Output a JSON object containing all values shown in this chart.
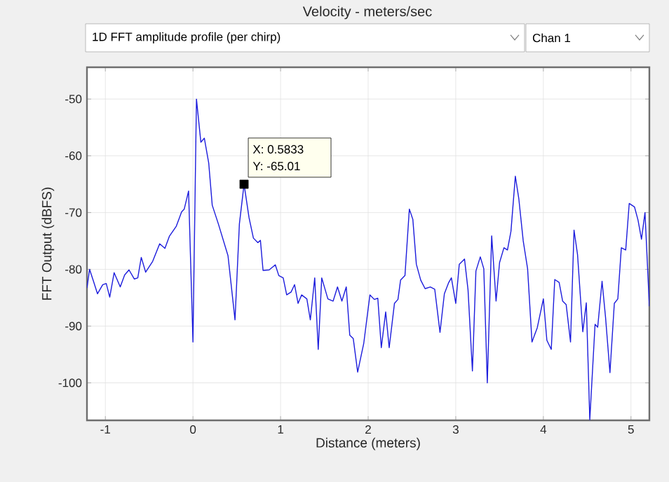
{
  "chart_data": {
    "type": "line",
    "title": "Velocity - meters/sec",
    "xlabel": "Distance (meters)",
    "ylabel": "FFT Output (dBFS)",
    "annotations": [
      "1D FFT amplitude profile (per chirp)",
      "Chan 1",
      {
        "text": "X: 0.5833",
        "x": 0.5833,
        "y": -65.01
      },
      {
        "text": "Y: -65.01",
        "x": 0.5833,
        "y": -65.01
      }
    ],
    "x": [
      -1.21,
      -1.18,
      -1.14,
      -1.09,
      -1.03,
      -0.99,
      -0.95,
      -0.9,
      -0.83,
      -0.78,
      -0.73,
      -0.67,
      -0.63,
      -0.59,
      -0.54,
      -0.46,
      -0.38,
      -0.32,
      -0.27,
      -0.19,
      -0.13,
      -0.1,
      -0.05,
      0.0,
      0.04,
      0.09,
      0.13,
      0.18,
      0.22,
      0.29,
      0.4,
      0.48,
      0.53,
      0.5833,
      0.64,
      0.69,
      0.74,
      0.77,
      0.8,
      0.87,
      0.94,
      0.98,
      1.03,
      1.07,
      1.12,
      1.16,
      1.2,
      1.24,
      1.3,
      1.34,
      1.39,
      1.43,
      1.47,
      1.54,
      1.6,
      1.65,
      1.7,
      1.75,
      1.79,
      1.83,
      1.88,
      1.95,
      2.02,
      2.07,
      2.11,
      2.15,
      2.2,
      2.24,
      2.3,
      2.34,
      2.37,
      2.42,
      2.47,
      2.51,
      2.55,
      2.6,
      2.65,
      2.71,
      2.76,
      2.82,
      2.87,
      2.92,
      2.95,
      3.0,
      3.04,
      3.1,
      3.14,
      3.19,
      3.23,
      3.28,
      3.32,
      3.36,
      3.41,
      3.46,
      3.5,
      3.55,
      3.59,
      3.63,
      3.68,
      3.72,
      3.77,
      3.82,
      3.87,
      3.93,
      4.0,
      4.04,
      4.09,
      4.13,
      4.18,
      4.22,
      4.26,
      4.31,
      4.35,
      4.39,
      4.45,
      4.49,
      4.53,
      4.59,
      4.62,
      4.67,
      4.71,
      4.76,
      4.81,
      4.85,
      4.89,
      4.94,
      4.98,
      5.04,
      5.08,
      5.12,
      5.16,
      5.21
    ],
    "series": [
      {
        "color": "#1c1cdc",
        "values": [
          -83.3,
          -80.0,
          -81.9,
          -84.3,
          -82.7,
          -82.5,
          -84.9,
          -80.6,
          -83.1,
          -81.0,
          -80.1,
          -81.7,
          -81.5,
          -77.9,
          -80.5,
          -78.6,
          -75.5,
          -76.3,
          -74.2,
          -72.4,
          -69.9,
          -69.4,
          -66.2,
          -92.8,
          -50.0,
          -57.6,
          -56.9,
          -61.3,
          -68.7,
          -72.0,
          -77.6,
          -88.9,
          -72.0,
          -65.0,
          -70.9,
          -74.5,
          -75.3,
          -74.9,
          -80.2,
          -80.1,
          -79.2,
          -81.1,
          -81.5,
          -84.5,
          -84.0,
          -82.7,
          -86.0,
          -84.5,
          -85.2,
          -88.9,
          -81.5,
          -94.1,
          -81.5,
          -85.2,
          -85.6,
          -83.1,
          -85.6,
          -83.1,
          -91.6,
          -92.2,
          -98.1,
          -93.0,
          -84.5,
          -85.3,
          -85.1,
          -93.8,
          -87.5,
          -93.8,
          -86.0,
          -85.3,
          -81.9,
          -81.1,
          -69.4,
          -71.2,
          -79.1,
          -81.9,
          -83.4,
          -83.1,
          -83.5,
          -91.1,
          -84.3,
          -82.3,
          -81.5,
          -86.0,
          -79.1,
          -78.2,
          -83.6,
          -97.9,
          -80.3,
          -77.8,
          -79.9,
          -100.0,
          -74.1,
          -85.6,
          -78.8,
          -76.2,
          -76.6,
          -73.3,
          -63.6,
          -67.6,
          -75.0,
          -79.9,
          -92.8,
          -90.3,
          -85.2,
          -92.5,
          -94.1,
          -81.8,
          -82.3,
          -85.6,
          -86.2,
          -92.8,
          -73.1,
          -77.4,
          -91.0,
          -85.9,
          -106.5,
          -89.7,
          -90.2,
          -82.1,
          -88.5,
          -98.2,
          -86.0,
          -85.2,
          -76.2,
          -76.6,
          -68.4,
          -69.0,
          -71.3,
          -74.7,
          -70.0,
          -86.5
        ]
      }
    ],
    "xlim": [
      -1.21,
      5.21
    ],
    "ylim": [
      -106.6,
      -44.4
    ],
    "xticks": [
      -1,
      0,
      1,
      2,
      3,
      4,
      5
    ],
    "yticks": [
      -100,
      -90,
      -80,
      -70,
      -60,
      -50
    ],
    "grid": true,
    "marker": "none",
    "line_style": "solid"
  }
}
